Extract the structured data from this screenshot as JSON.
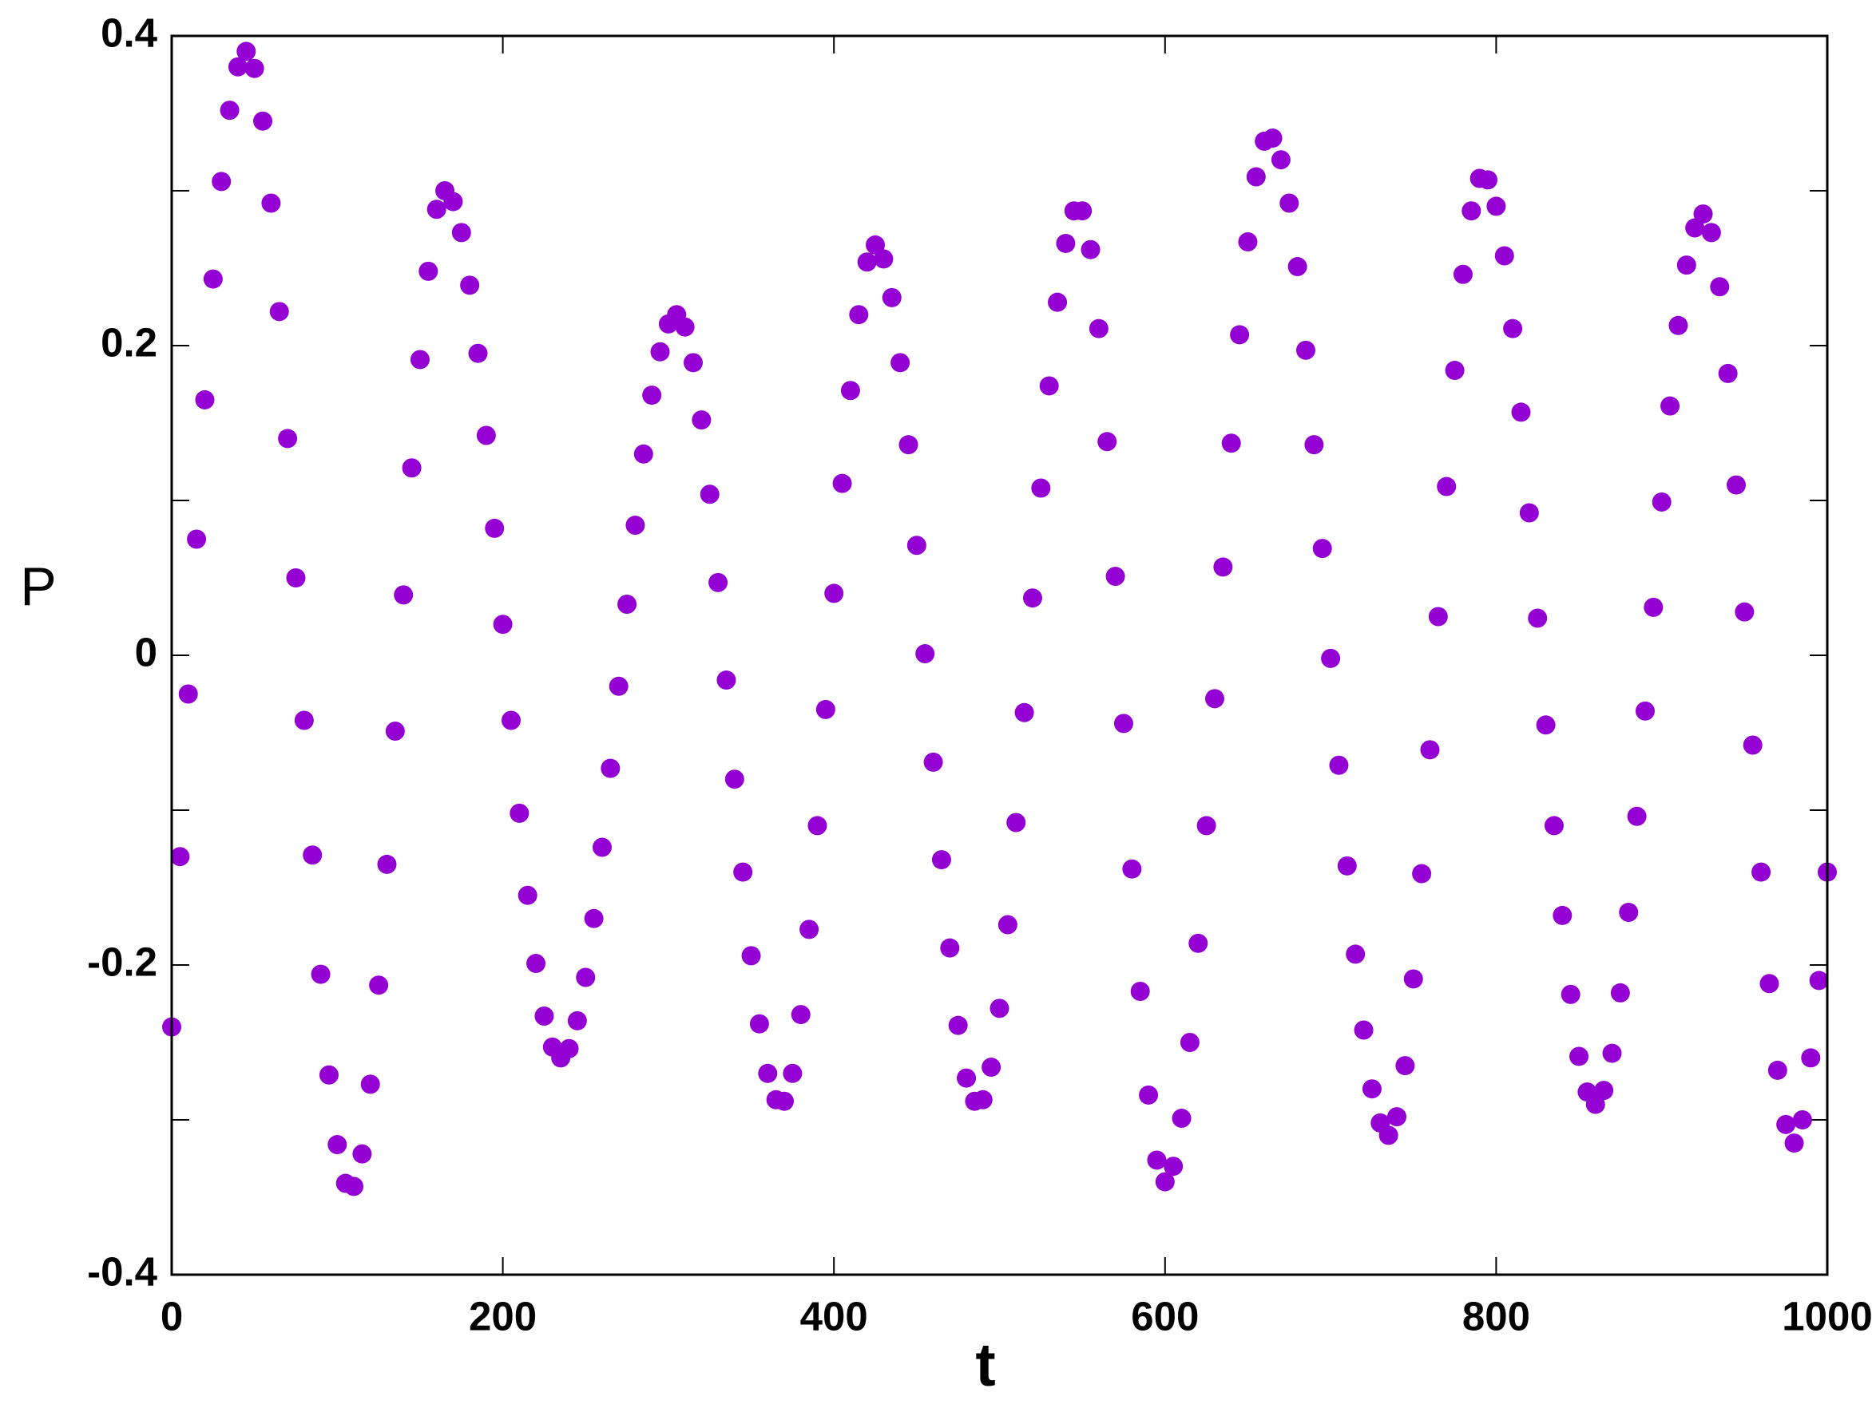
{
  "chart_data": {
    "type": "scatter",
    "xlabel": "t",
    "ylabel": "P",
    "color": "#9400d3",
    "xlim": [
      0,
      1000
    ],
    "ylim": [
      -0.4,
      0.4
    ],
    "xticks": [
      0,
      200,
      400,
      600,
      800,
      1000
    ],
    "yticks": [
      -0.4,
      -0.2,
      0,
      0.2,
      0.4
    ],
    "yticks_minor": [
      -0.3,
      -0.1,
      0.1,
      0.3
    ],
    "x": [
      0,
      5,
      10,
      15,
      20,
      25,
      30,
      35,
      40,
      45,
      50,
      55,
      60,
      65,
      70,
      75,
      80,
      85,
      90,
      95,
      100,
      105,
      110,
      115,
      120,
      125,
      130,
      135,
      140,
      145,
      150,
      155,
      160,
      165,
      170,
      175,
      180,
      185,
      190,
      195,
      200,
      205,
      210,
      215,
      220,
      225,
      230,
      235,
      240,
      245,
      250,
      255,
      260,
      265,
      270,
      275,
      280,
      285,
      290,
      295,
      300,
      305,
      310,
      315,
      320,
      325,
      330,
      335,
      340,
      345,
      350,
      355,
      360,
      365,
      370,
      375,
      380,
      385,
      390,
      395,
      400,
      405,
      410,
      415,
      420,
      425,
      430,
      435,
      440,
      445,
      450,
      455,
      460,
      465,
      470,
      475,
      480,
      485,
      490,
      495,
      500,
      505,
      510,
      515,
      520,
      525,
      530,
      535,
      540,
      545,
      550,
      555,
      560,
      565,
      570,
      575,
      580,
      585,
      590,
      595,
      600,
      605,
      610,
      615,
      620,
      625,
      630,
      635,
      640,
      645,
      650,
      655,
      660,
      665,
      670,
      675,
      680,
      685,
      690,
      695,
      700,
      705,
      710,
      715,
      720,
      725,
      730,
      735,
      740,
      745,
      750,
      755,
      760,
      765,
      770,
      775,
      780,
      785,
      790,
      795,
      800,
      805,
      810,
      815,
      820,
      825,
      830,
      835,
      840,
      845,
      850,
      855,
      860,
      865,
      870,
      875,
      880,
      885,
      890,
      895,
      900,
      905,
      910,
      915,
      920,
      925,
      930,
      935,
      940,
      945,
      950,
      955,
      960,
      965,
      970,
      975,
      980,
      985,
      990,
      995,
      1000
    ],
    "y": [
      -0.24,
      -0.13,
      -0.025,
      0.075,
      0.165,
      0.243,
      0.306,
      0.352,
      0.38,
      0.39,
      0.379,
      0.345,
      0.292,
      0.222,
      0.14,
      0.05,
      -0.042,
      -0.129,
      -0.206,
      -0.271,
      -0.316,
      -0.341,
      -0.343,
      -0.322,
      -0.277,
      -0.213,
      -0.135,
      -0.049,
      0.039,
      0.121,
      0.191,
      0.248,
      0.288,
      0.3,
      0.293,
      0.273,
      0.239,
      0.195,
      0.142,
      0.082,
      0.02,
      -0.042,
      -0.102,
      -0.155,
      -0.199,
      -0.233,
      -0.253,
      -0.26,
      -0.254,
      -0.236,
      -0.208,
      -0.17,
      -0.124,
      -0.073,
      -0.02,
      0.033,
      0.084,
      0.13,
      0.168,
      0.196,
      0.214,
      0.22,
      0.212,
      0.189,
      0.152,
      0.104,
      0.047,
      -0.016,
      -0.08,
      -0.14,
      -0.194,
      -0.238,
      -0.27,
      -0.287,
      -0.288,
      -0.27,
      -0.232,
      -0.177,
      -0.11,
      -0.035,
      0.04,
      0.111,
      0.171,
      0.22,
      0.254,
      0.265,
      0.256,
      0.231,
      0.189,
      0.136,
      0.071,
      0.001,
      -0.069,
      -0.132,
      -0.189,
      -0.239,
      -0.273,
      -0.288,
      -0.287,
      -0.266,
      -0.228,
      -0.174,
      -0.108,
      -0.037,
      0.037,
      0.108,
      0.174,
      0.228,
      0.266,
      0.287,
      0.287,
      0.262,
      0.211,
      0.138,
      0.051,
      -0.044,
      -0.138,
      -0.217,
      -0.284,
      -0.326,
      -0.34,
      -0.33,
      -0.299,
      -0.25,
      -0.186,
      -0.11,
      -0.028,
      0.057,
      0.137,
      0.207,
      0.267,
      0.309,
      0.332,
      0.334,
      0.32,
      0.292,
      0.251,
      0.197,
      0.136,
      0.069,
      -0.002,
      -0.071,
      -0.136,
      -0.193,
      -0.242,
      -0.28,
      -0.302,
      -0.31,
      -0.298,
      -0.265,
      -0.209,
      -0.141,
      -0.061,
      0.025,
      0.109,
      0.184,
      0.246,
      0.287,
      0.308,
      0.307,
      0.29,
      0.258,
      0.211,
      0.157,
      0.092,
      0.024,
      -0.045,
      -0.11,
      -0.168,
      -0.219,
      -0.259,
      -0.282,
      -0.29,
      -0.281,
      -0.257,
      -0.218,
      -0.166,
      -0.104,
      -0.036,
      0.031,
      0.099,
      0.161,
      0.213,
      0.252,
      0.276,
      0.285,
      0.273,
      0.238,
      0.182,
      0.11,
      0.028,
      -0.058,
      -0.14,
      -0.212,
      -0.268,
      -0.303,
      -0.315,
      -0.3,
      -0.26,
      -0.21,
      -0.14
    ]
  }
}
